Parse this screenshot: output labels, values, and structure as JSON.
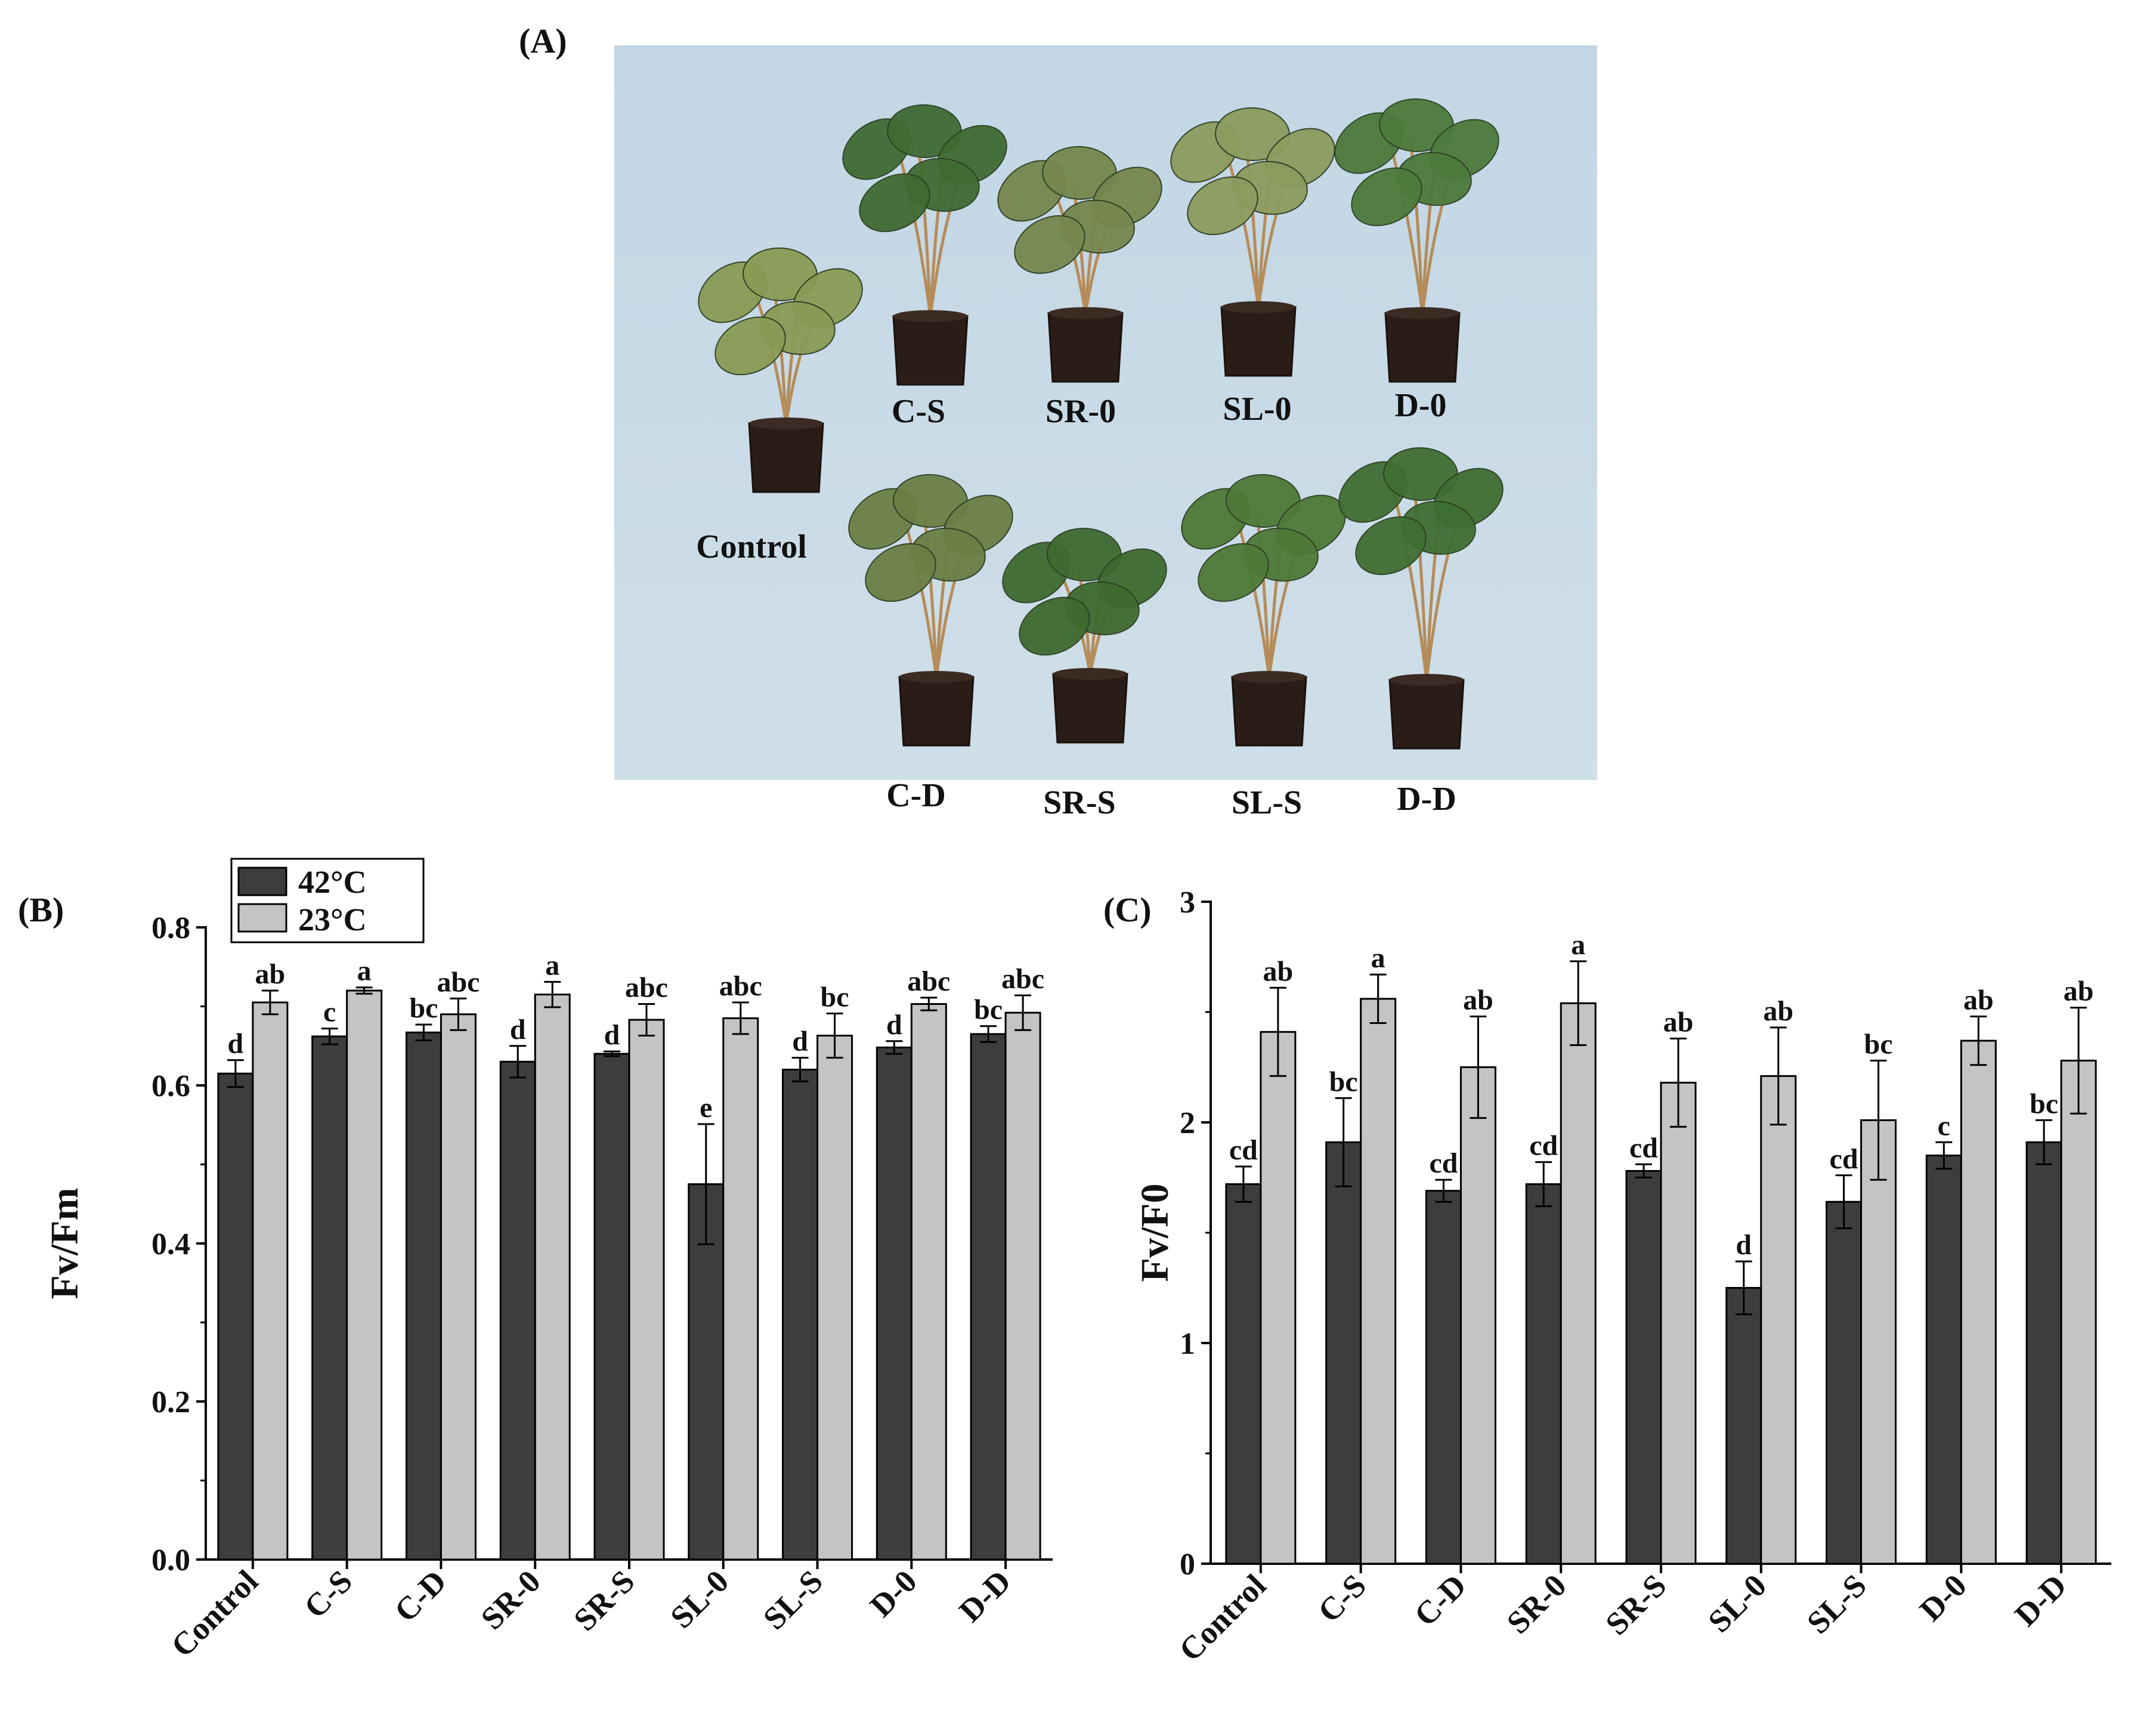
{
  "colors": {
    "hot": "#3d3d3d",
    "cool": "#c4c4c4",
    "photo_bg": "#c5d8e4"
  },
  "panel_a": {
    "label": "(A)",
    "plants_top": [
      "Control",
      "C-S",
      "SR-0",
      "SL-0",
      "D-0"
    ],
    "plants_bottom": [
      "C-D",
      "SR-S",
      "SL-S",
      "D-D"
    ]
  },
  "legend": [
    "42°C",
    "23°C"
  ],
  "chart_data": [
    {
      "panel": "(B)",
      "type": "bar",
      "ylabel": "Fv/Fm",
      "xlabel": "",
      "ylim": [
        0,
        0.8
      ],
      "yticks": [
        "0.0",
        "0.2",
        "0.4",
        "0.6",
        "0.8"
      ],
      "categories": [
        "Control",
        "C-S",
        "C-D",
        "SR-0",
        "SR-S",
        "SL-0",
        "SL-S",
        "D-0",
        "D-D"
      ],
      "series": [
        {
          "name": "42°C",
          "values": [
            0.615,
            0.662,
            0.667,
            0.63,
            0.64,
            0.475,
            0.62,
            0.648,
            0.665
          ],
          "errors": [
            0.017,
            0.01,
            0.01,
            0.02,
            0.003,
            0.076,
            0.015,
            0.008,
            0.01
          ],
          "letters": [
            "d",
            "c",
            "bc",
            "d",
            "d",
            "e",
            "d",
            "d",
            "bc"
          ]
        },
        {
          "name": "23°C",
          "values": [
            0.705,
            0.72,
            0.69,
            0.715,
            0.683,
            0.685,
            0.663,
            0.703,
            0.692
          ],
          "errors": [
            0.015,
            0.004,
            0.02,
            0.016,
            0.02,
            0.02,
            0.028,
            0.008,
            0.022
          ],
          "letters": [
            "ab",
            "a",
            "abc",
            "a",
            "abc",
            "abc",
            "bc",
            "abc",
            "abc"
          ]
        }
      ]
    },
    {
      "panel": "(C)",
      "type": "bar",
      "ylabel": "Fv/F0",
      "xlabel": "",
      "ylim": [
        0,
        3
      ],
      "yticks": [
        "0",
        "1",
        "2",
        "3"
      ],
      "categories": [
        "Control",
        "C-S",
        "C-D",
        "SR-0",
        "SR-S",
        "SL-0",
        "SL-S",
        "D-0",
        "D-D"
      ],
      "series": [
        {
          "name": "42°C",
          "values": [
            1.72,
            1.91,
            1.69,
            1.72,
            1.78,
            1.25,
            1.64,
            1.85,
            1.91
          ],
          "errors": [
            0.08,
            0.2,
            0.05,
            0.1,
            0.03,
            0.12,
            0.12,
            0.06,
            0.1
          ],
          "letters": [
            "cd",
            "bc",
            "cd",
            "cd",
            "cd",
            "d",
            "cd",
            "c",
            "bc"
          ]
        },
        {
          "name": "23°C",
          "values": [
            2.41,
            2.56,
            2.25,
            2.54,
            2.18,
            2.21,
            2.01,
            2.37,
            2.28
          ],
          "errors": [
            0.2,
            0.11,
            0.23,
            0.19,
            0.2,
            0.22,
            0.27,
            0.11,
            0.24
          ],
          "letters": [
            "ab",
            "a",
            "ab",
            "a",
            "ab",
            "ab",
            "bc",
            "ab",
            "ab"
          ]
        }
      ]
    }
  ]
}
